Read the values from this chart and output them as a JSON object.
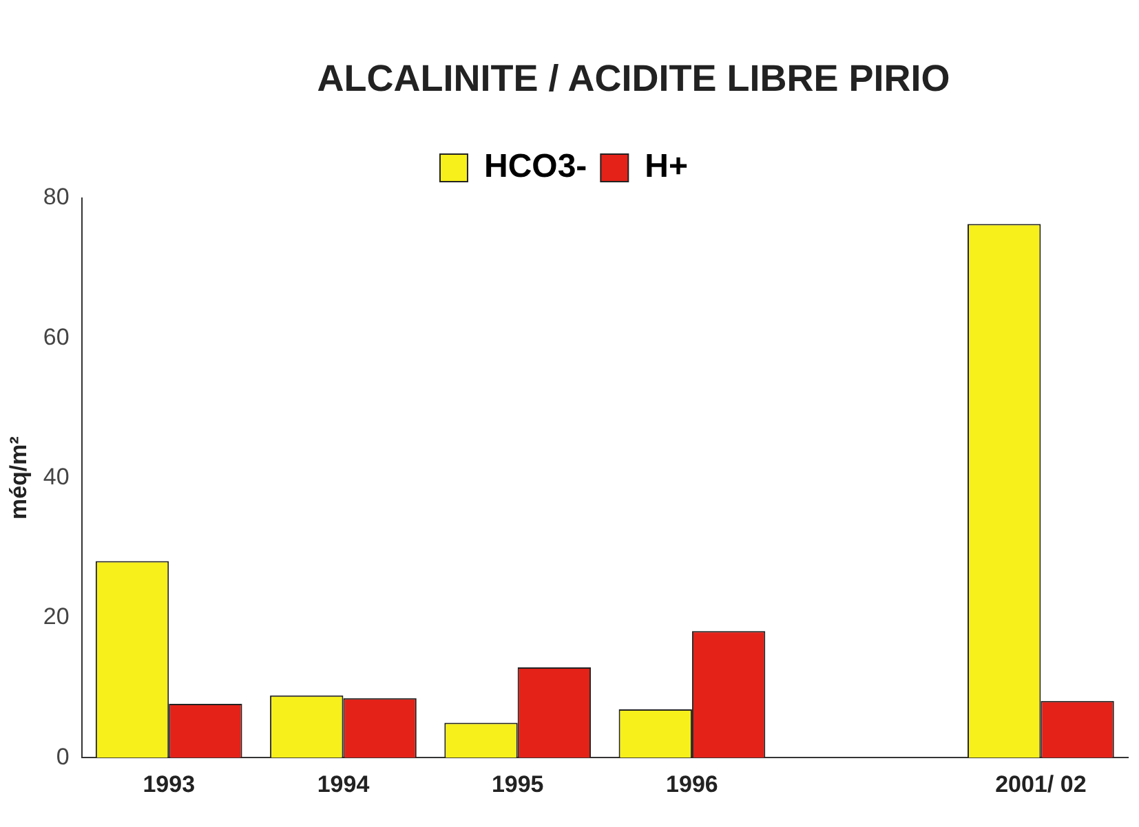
{
  "chart_data": {
    "type": "bar",
    "title": "ALCALINITE / ACIDITE LIBRE PIRIO",
    "ylabel": "méq/m²",
    "categories": [
      "1993",
      "1994",
      "1995",
      "1996",
      null,
      "2001/ 02"
    ],
    "series": [
      {
        "name": "HCO3-",
        "color": "#f7f01a",
        "values": [
          28.1,
          8.9,
          5.0,
          6.9,
          null,
          76.3
        ]
      },
      {
        "name": "H+",
        "color": "#e42218",
        "values": [
          7.7,
          8.5,
          12.9,
          18.1,
          null,
          8.1
        ]
      }
    ],
    "ylim": [
      0,
      80
    ],
    "yticks": [
      0,
      20,
      40,
      60,
      80
    ],
    "grid": false,
    "legend": "top"
  }
}
